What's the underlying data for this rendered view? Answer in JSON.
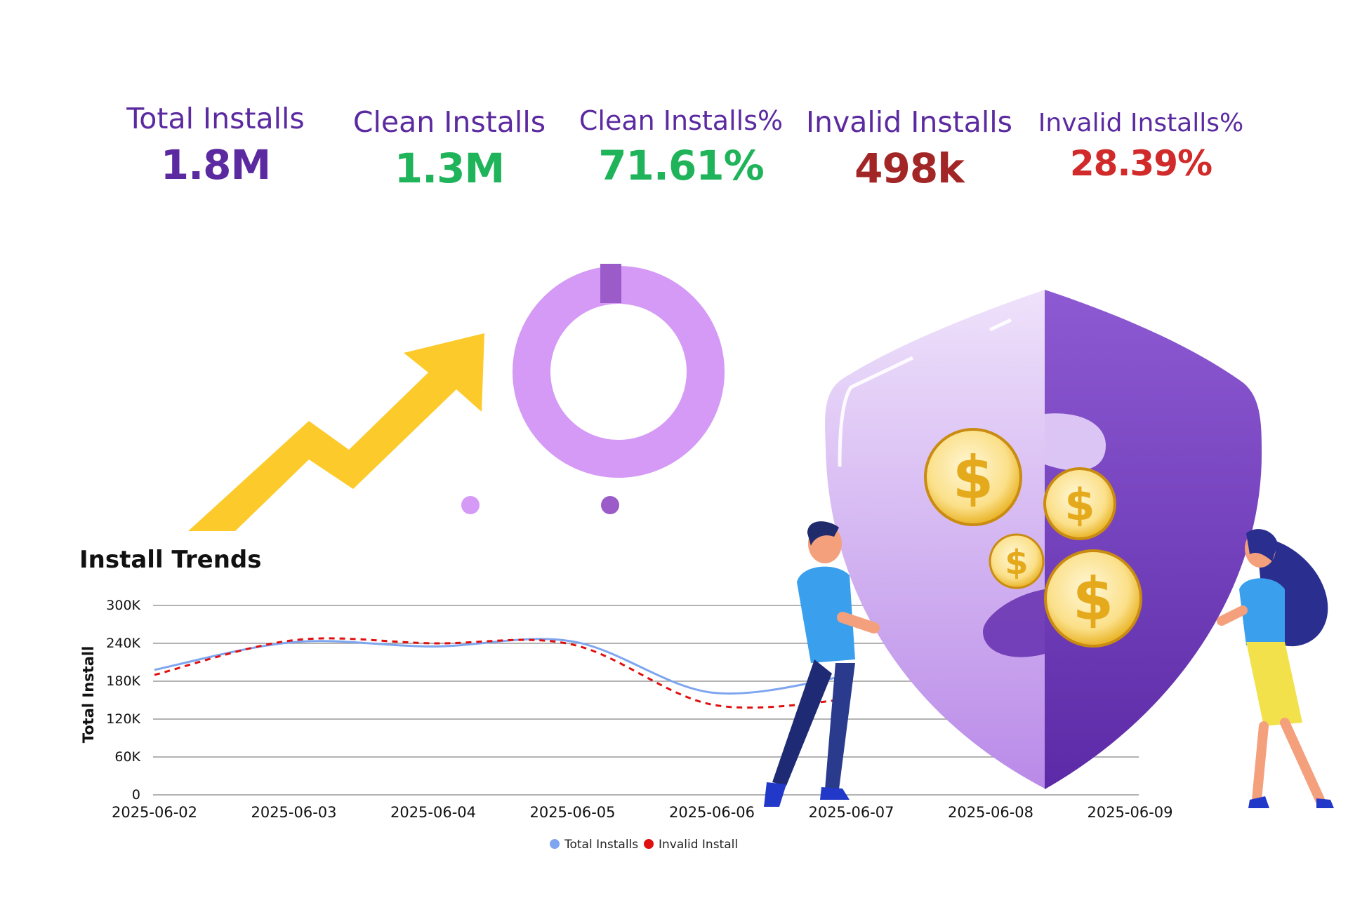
{
  "kpis": [
    {
      "label": "Total Installs",
      "value": "1.8M",
      "color": "#5b2aa0"
    },
    {
      "label": "Clean Installs",
      "value": "1.3M",
      "color": "#1fb35a"
    },
    {
      "label": "Clean Installs%",
      "value": "71.61%",
      "color": "#1fb35a"
    },
    {
      "label": "Invalid Installs",
      "value": "498k",
      "color": "#a32626"
    },
    {
      "label": "Invalid Installs%",
      "value": "28.39%",
      "color": "#d12a2a"
    }
  ],
  "decor": {
    "arrow_icon": "growth-arrow-icon",
    "donut_ring_color": "#d49af5",
    "donut_slice_color": "#9b5cc9",
    "shield_icon": "shield-icon",
    "coin_icon": "dollar-coin-icon"
  },
  "chart_data": {
    "type": "line",
    "title": "Install Trends",
    "ylabel": "Total Install",
    "xlabel": "",
    "ylim": [
      0,
      300000
    ],
    "yticks": [
      {
        "value": 0,
        "label": "0"
      },
      {
        "value": 60000,
        "label": "60K"
      },
      {
        "value": 120000,
        "label": "120K"
      },
      {
        "value": 180000,
        "label": "180K"
      },
      {
        "value": 240000,
        "label": "240K"
      },
      {
        "value": 300000,
        "label": "300K"
      }
    ],
    "categories": [
      "2025-06-02",
      "2025-06-03",
      "2025-06-04",
      "2025-06-05",
      "2025-06-06",
      "2025-06-07",
      "2025-06-08",
      "2025-06-09"
    ],
    "grid": true,
    "legend_position": "bottom",
    "series": [
      {
        "name": "Total Installs",
        "color": "#7ea6f0",
        "style": "solid",
        "values": [
          198000,
          242000,
          235000,
          243000,
          162000,
          190000,
          null,
          null
        ]
      },
      {
        "name": "Invalid Install",
        "color": "#e01010",
        "style": "dashed",
        "values": [
          190000,
          245000,
          240000,
          238000,
          143000,
          152000,
          null,
          null
        ]
      }
    ]
  }
}
